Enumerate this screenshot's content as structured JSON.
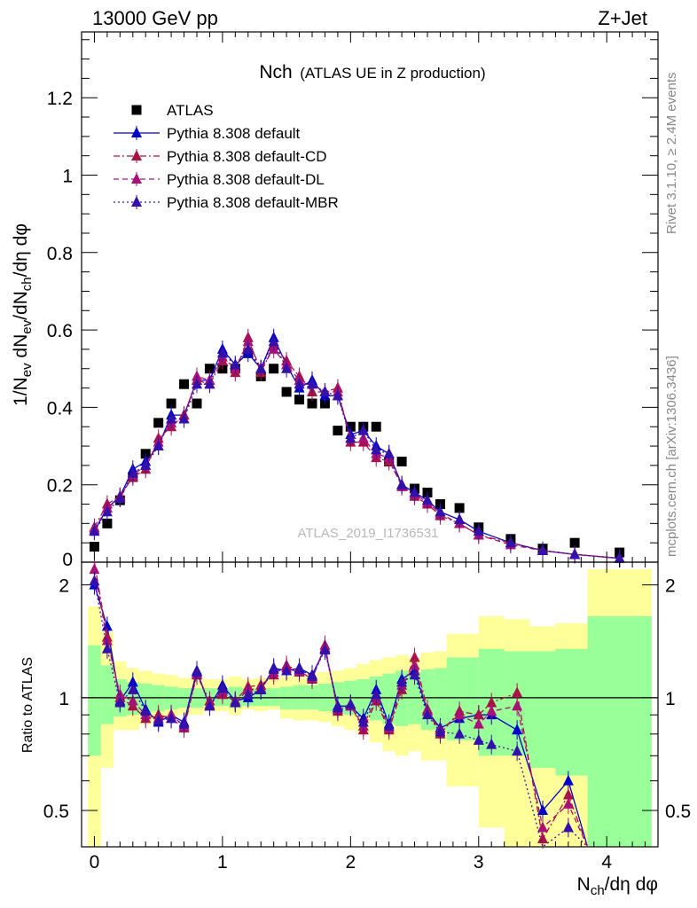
{
  "header": {
    "energy_label": "13000 GeV pp",
    "process_label": "Z+Jet",
    "title_main": "Nch",
    "title_sub": "(ATLAS UE in Z production)",
    "side_rivet": "Rivet 3.1.10, ≥ 2.4M events",
    "side_mcplots": "mcplots.cern.ch [arXiv:1306.3436]",
    "watermark": "ATLAS_2019_I1736531"
  },
  "axes": {
    "top_ylabel": "1/N_ev dN_ev/dN_ch/dη dφ",
    "bottom_ylabel": "Ratio to ATLAS",
    "xlabel": "N_ch/dη dφ",
    "x_ticks": [
      "0",
      "1",
      "2",
      "3",
      "4"
    ],
    "top_y_ticks": [
      "0.2",
      "0.4",
      "0.6",
      "0.8",
      "1",
      "1.2"
    ],
    "top_y_zero": "0",
    "ratio_y_ticks": [
      "0.5",
      "1",
      "2"
    ]
  },
  "legend": [
    {
      "label": "ATLAS",
      "color": "#000000",
      "marker": "square",
      "dash": "none"
    },
    {
      "label": "Pythia 8.308 default",
      "color": "#0000cc",
      "marker": "triangle",
      "dash": "solid"
    },
    {
      "label": "Pythia 8.308 default-CD",
      "color": "#aa1144",
      "marker": "triangle",
      "dash": "dashdot"
    },
    {
      "label": "Pythia 8.308 default-DL",
      "color": "#aa1177",
      "marker": "triangle",
      "dash": "dash"
    },
    {
      "label": "Pythia 8.308 default-MBR",
      "color": "#3311aa",
      "marker": "triangle",
      "dash": "dot"
    }
  ],
  "chart_data": [
    {
      "type": "scatter",
      "panel": "main",
      "xlim": [
        -0.1,
        4.4
      ],
      "ylim": [
        0,
        1.37
      ],
      "x": [
        0.0,
        0.1,
        0.2,
        0.3,
        0.4,
        0.5,
        0.6,
        0.7,
        0.8,
        0.9,
        1.0,
        1.1,
        1.2,
        1.3,
        1.4,
        1.5,
        1.6,
        1.7,
        1.8,
        1.9,
        2.0,
        2.1,
        2.2,
        2.3,
        2.4,
        2.5,
        2.6,
        2.7,
        2.85,
        3.0,
        3.25,
        3.5,
        3.75,
        4.1
      ],
      "series": [
        {
          "name": "ATLAS",
          "values": [
            0.04,
            0.1,
            0.16,
            0.22,
            0.28,
            0.36,
            0.41,
            0.46,
            0.41,
            0.5,
            0.5,
            0.5,
            0.54,
            0.48,
            0.5,
            0.44,
            0.42,
            0.41,
            0.41,
            0.34,
            0.35,
            0.35,
            0.35,
            0.26,
            0.26,
            0.19,
            0.18,
            0.15,
            0.14,
            0.09,
            0.06,
            0.035,
            0.05,
            0.025
          ]
        },
        {
          "name": "Pythia 8.308 default",
          "values": [
            0.08,
            0.14,
            0.17,
            0.24,
            0.26,
            0.3,
            0.38,
            0.38,
            0.47,
            0.47,
            0.55,
            0.51,
            0.54,
            0.5,
            0.58,
            0.51,
            0.45,
            0.47,
            0.43,
            0.43,
            0.33,
            0.34,
            0.3,
            0.28,
            0.2,
            0.18,
            0.16,
            0.13,
            0.11,
            0.08,
            0.05,
            0.03,
            0.02,
            0.01
          ]
        },
        {
          "name": "Pythia 8.308 default-CD",
          "values": [
            0.09,
            0.15,
            0.17,
            0.22,
            0.24,
            0.32,
            0.35,
            0.38,
            0.47,
            0.46,
            0.52,
            0.49,
            0.58,
            0.49,
            0.56,
            0.52,
            0.48,
            0.44,
            0.44,
            0.45,
            0.31,
            0.31,
            0.27,
            0.26,
            0.2,
            0.17,
            0.15,
            0.12,
            0.1,
            0.07,
            0.05,
            0.03,
            0.02,
            0.01
          ]
        },
        {
          "name": "Pythia 8.308 default-DL",
          "values": [
            0.085,
            0.14,
            0.165,
            0.225,
            0.25,
            0.31,
            0.36,
            0.37,
            0.48,
            0.47,
            0.53,
            0.5,
            0.57,
            0.5,
            0.55,
            0.51,
            0.47,
            0.46,
            0.44,
            0.44,
            0.32,
            0.32,
            0.28,
            0.27,
            0.195,
            0.175,
            0.155,
            0.125,
            0.1,
            0.07,
            0.045,
            0.03,
            0.02,
            0.01
          ]
        },
        {
          "name": "Pythia 8.308 default-MBR",
          "values": [
            0.08,
            0.13,
            0.165,
            0.23,
            0.25,
            0.3,
            0.37,
            0.37,
            0.46,
            0.46,
            0.54,
            0.51,
            0.55,
            0.5,
            0.57,
            0.5,
            0.46,
            0.46,
            0.44,
            0.43,
            0.32,
            0.34,
            0.29,
            0.28,
            0.2,
            0.18,
            0.16,
            0.13,
            0.11,
            0.08,
            0.05,
            0.03,
            0.02,
            0.01
          ]
        }
      ]
    },
    {
      "type": "line",
      "panel": "ratio",
      "xlim": [
        -0.1,
        4.4
      ],
      "ylim": [
        0.4,
        2.3
      ],
      "y_scale": "log",
      "x": [
        0.0,
        0.1,
        0.2,
        0.3,
        0.4,
        0.5,
        0.6,
        0.7,
        0.8,
        0.9,
        1.0,
        1.1,
        1.2,
        1.3,
        1.4,
        1.5,
        1.6,
        1.7,
        1.8,
        1.9,
        2.0,
        2.1,
        2.2,
        2.3,
        2.4,
        2.5,
        2.6,
        2.7,
        2.85,
        3.0,
        3.1,
        3.3,
        3.5,
        3.7,
        3.85
      ],
      "series": [
        {
          "name": "Pythia 8.308 default",
          "values": [
            2.0,
            1.55,
            0.98,
            1.1,
            0.93,
            0.86,
            0.9,
            0.86,
            1.18,
            0.95,
            1.08,
            0.98,
            1.0,
            1.05,
            1.2,
            1.18,
            1.2,
            1.15,
            1.35,
            0.95,
            0.95,
            0.88,
            1.05,
            0.85,
            1.12,
            1.18,
            0.92,
            0.83,
            0.88,
            0.9,
            0.9,
            0.82,
            0.5,
            0.6,
            0.4
          ]
        },
        {
          "name": "Pythia 8.308 default-CD",
          "values": [
            2.3,
            1.45,
            1.0,
            0.95,
            0.88,
            0.9,
            0.88,
            0.83,
            1.15,
            0.98,
            1.02,
            0.98,
            1.07,
            1.08,
            1.15,
            1.22,
            1.18,
            1.12,
            1.38,
            0.92,
            0.96,
            0.82,
            0.98,
            0.82,
            1.05,
            1.28,
            0.93,
            0.8,
            0.92,
            0.9,
            0.97,
            1.03,
            0.42,
            0.55,
            0.3
          ]
        },
        {
          "name": "Pythia 8.308 default-DL",
          "values": [
            2.2,
            1.42,
            1.02,
            0.98,
            0.9,
            0.88,
            0.9,
            0.84,
            1.16,
            0.96,
            1.04,
            0.97,
            1.05,
            1.06,
            1.17,
            1.2,
            1.17,
            1.13,
            1.36,
            0.93,
            0.95,
            0.84,
            1.0,
            0.83,
            1.08,
            1.22,
            0.92,
            0.82,
            0.9,
            0.85,
            0.92,
            0.95,
            0.45,
            0.52,
            0.3
          ]
        },
        {
          "name": "Pythia 8.308 default-MBR",
          "values": [
            2.05,
            1.35,
            0.97,
            1.05,
            0.92,
            0.87,
            0.88,
            0.85,
            1.17,
            0.95,
            1.06,
            0.97,
            1.02,
            1.05,
            1.19,
            1.18,
            1.19,
            1.14,
            1.34,
            0.94,
            0.96,
            0.86,
            1.02,
            0.84,
            1.1,
            1.15,
            0.9,
            0.81,
            0.8,
            0.77,
            0.75,
            0.72,
            0.4,
            0.45,
            0.3
          ]
        }
      ],
      "bands": {
        "x_edges": [
          -0.05,
          0.05,
          0.15,
          0.25,
          0.35,
          0.45,
          0.55,
          0.65,
          0.75,
          0.85,
          0.95,
          1.05,
          1.15,
          1.25,
          1.35,
          1.45,
          1.55,
          1.65,
          1.75,
          1.85,
          1.95,
          2.05,
          2.15,
          2.25,
          2.35,
          2.45,
          2.55,
          2.65,
          2.75,
          3.0,
          3.2,
          3.4,
          3.6,
          3.85,
          4.35
        ],
        "yellow_low": [
          0.35,
          0.65,
          0.82,
          0.82,
          0.85,
          0.87,
          0.88,
          0.9,
          0.9,
          0.92,
          0.92,
          0.9,
          0.93,
          0.92,
          0.93,
          0.88,
          0.87,
          0.87,
          0.86,
          0.84,
          0.82,
          0.8,
          0.76,
          0.72,
          0.7,
          0.72,
          0.68,
          0.68,
          0.58,
          0.45,
          0.4,
          0.4,
          0.38,
          0.38
        ],
        "yellow_high": [
          1.75,
          1.5,
          1.25,
          1.2,
          1.18,
          1.16,
          1.15,
          1.13,
          1.13,
          1.12,
          1.12,
          1.14,
          1.12,
          1.13,
          1.12,
          1.14,
          1.15,
          1.16,
          1.17,
          1.18,
          1.2,
          1.23,
          1.26,
          1.28,
          1.3,
          1.28,
          1.32,
          1.33,
          1.48,
          1.65,
          1.62,
          1.55,
          1.58,
          2.2
        ],
        "green_low": [
          0.7,
          0.85,
          0.89,
          0.9,
          0.91,
          0.92,
          0.93,
          0.94,
          0.94,
          0.95,
          0.95,
          0.94,
          0.95,
          0.95,
          0.95,
          0.93,
          0.93,
          0.93,
          0.92,
          0.91,
          0.9,
          0.89,
          0.87,
          0.85,
          0.84,
          0.85,
          0.82,
          0.82,
          0.77,
          0.7,
          0.7,
          0.65,
          0.62,
          0.4
        ],
        "green_high": [
          1.38,
          1.22,
          1.12,
          1.1,
          1.09,
          1.08,
          1.07,
          1.06,
          1.06,
          1.06,
          1.06,
          1.07,
          1.06,
          1.06,
          1.06,
          1.07,
          1.08,
          1.08,
          1.09,
          1.1,
          1.11,
          1.12,
          1.14,
          1.16,
          1.18,
          1.17,
          1.19,
          1.2,
          1.28,
          1.35,
          1.33,
          1.33,
          1.35,
          1.65
        ]
      }
    }
  ]
}
